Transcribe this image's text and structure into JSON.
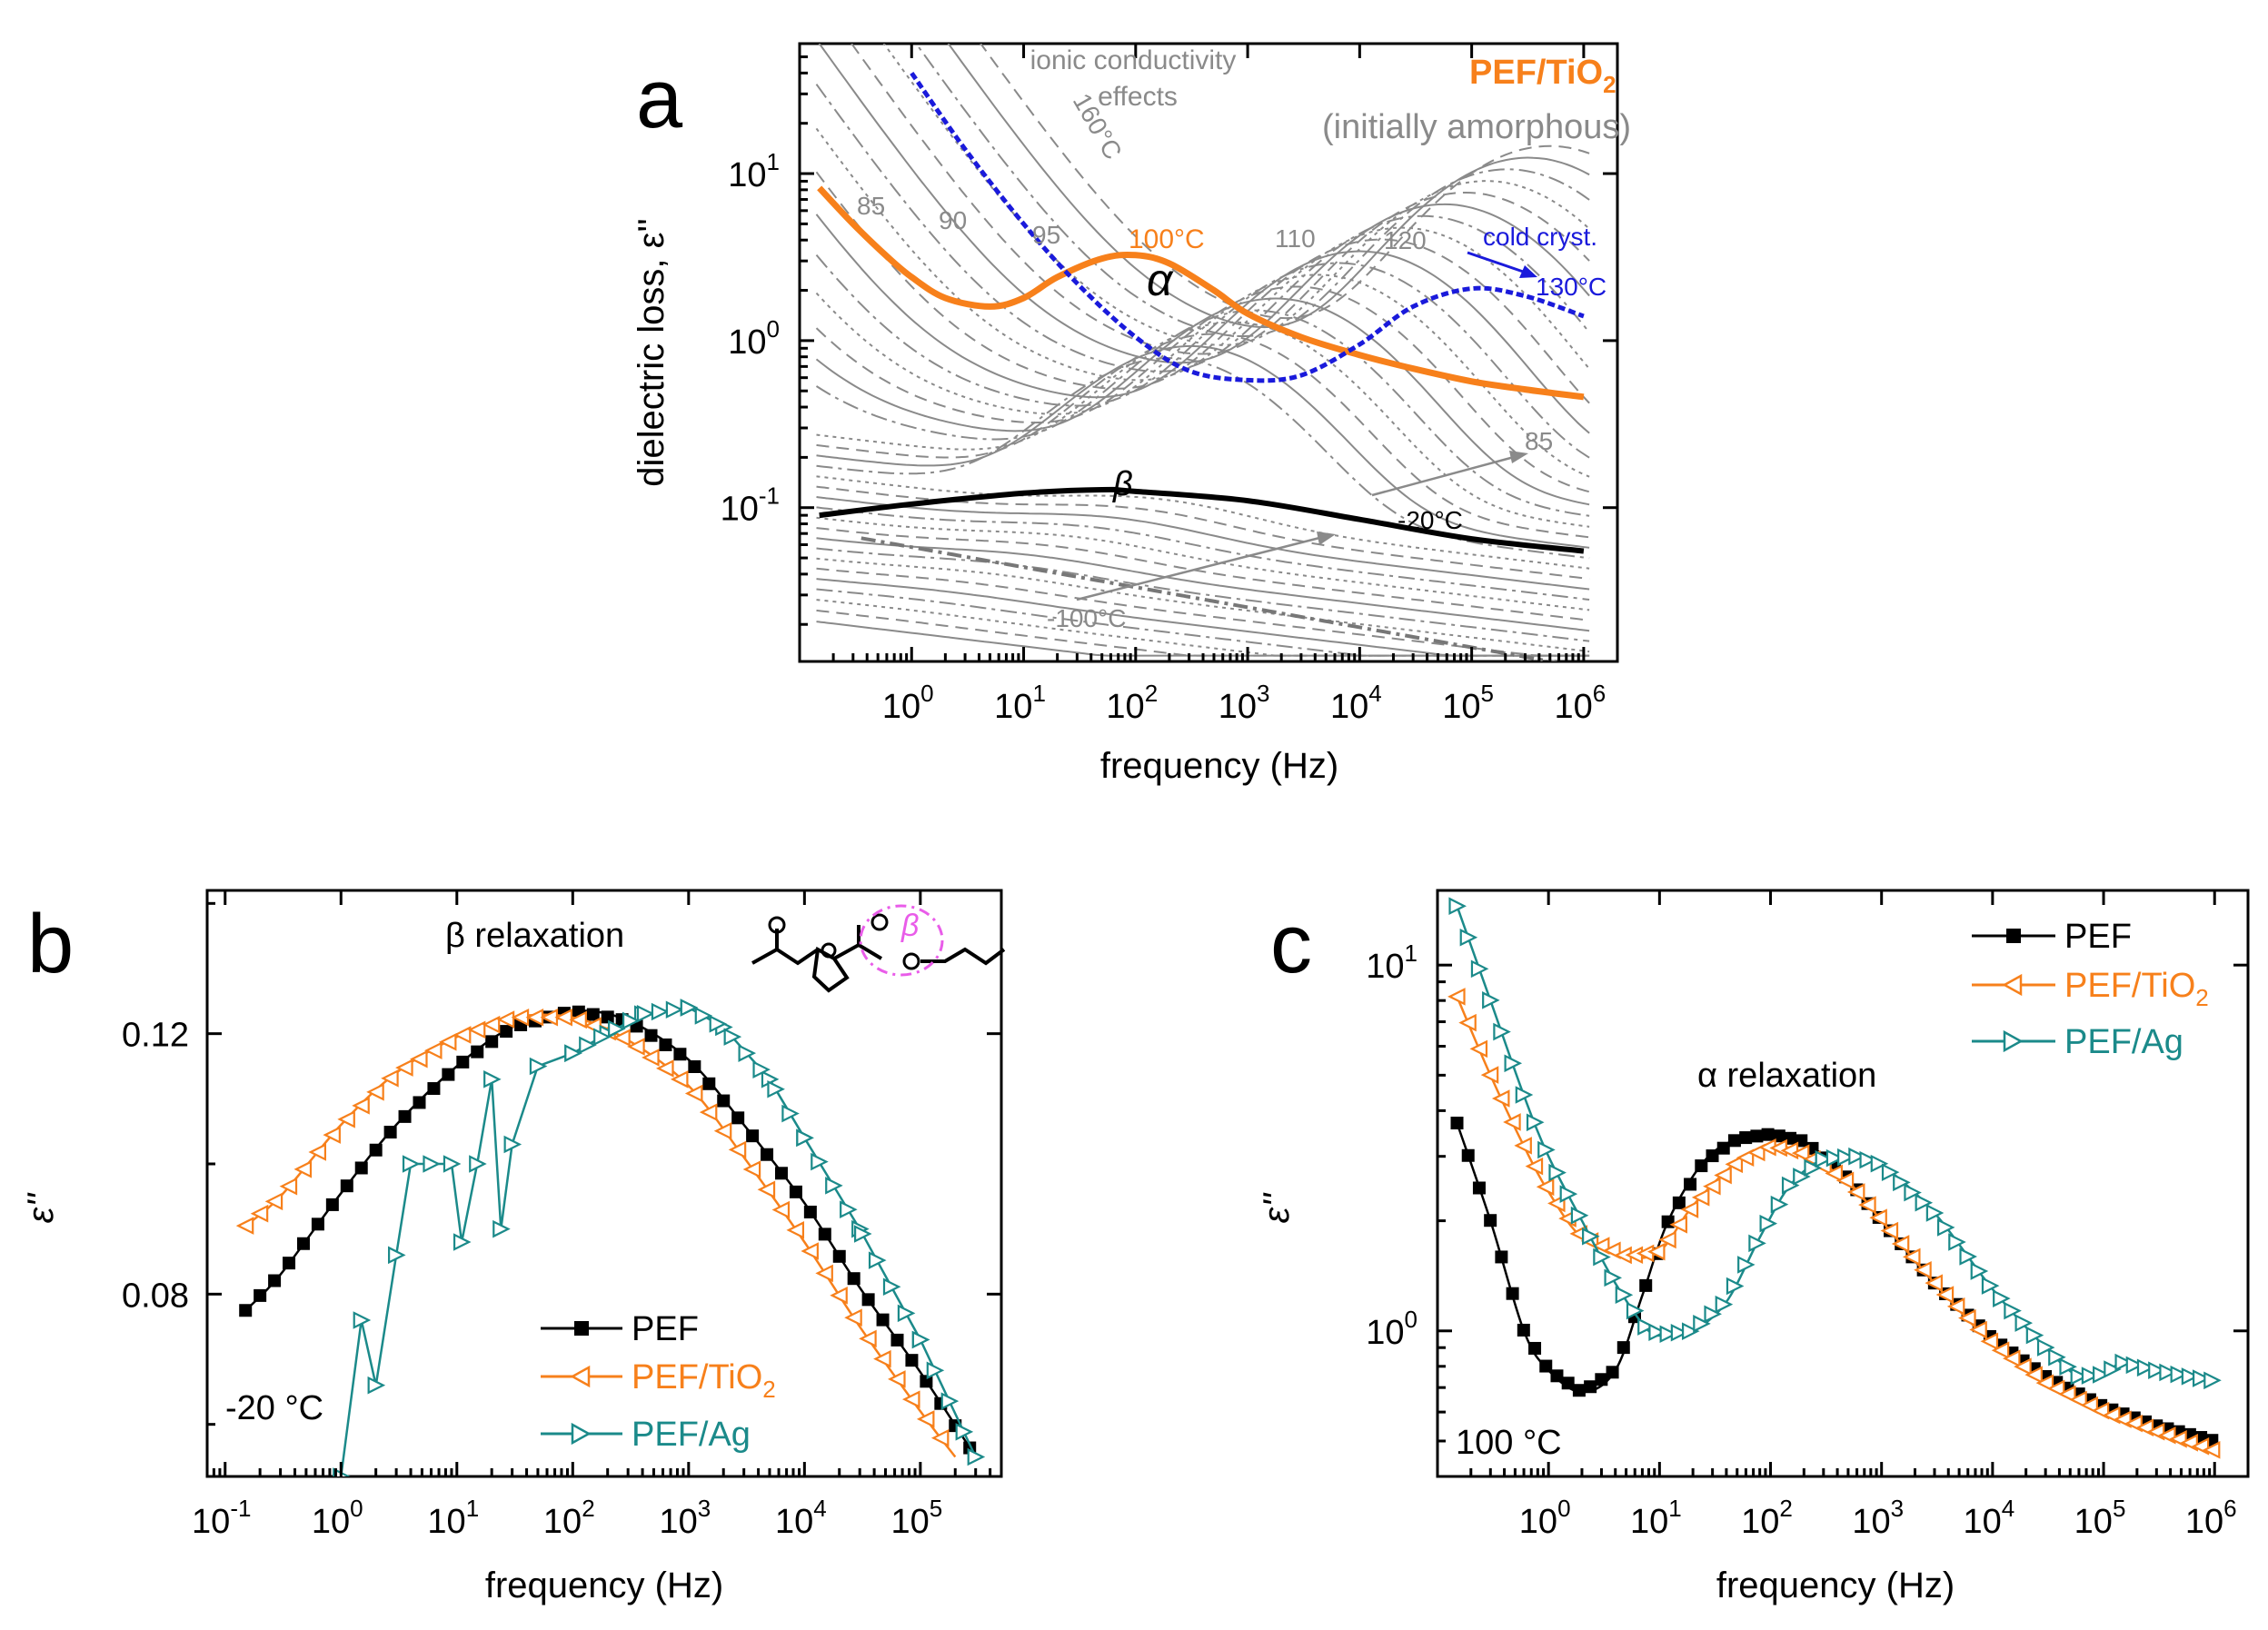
{
  "chart_data": [
    {
      "panel": "a",
      "type": "line",
      "title": "PEF/TiO2",
      "subtitle": "(initially amorphous)",
      "xlabel": "frequency (Hz)",
      "ylabel": "dielectric loss, ε''",
      "x_scale": "log",
      "y_scale": "log",
      "xlim": [
        0.1,
        2000000
      ],
      "ylim": [
        0.012,
        60
      ],
      "x_ticks": [
        "10^0",
        "10^1",
        "10^2",
        "10^3",
        "10^4",
        "10^5",
        "10^6"
      ],
      "y_ticks": [
        "10^-1",
        "10^0",
        "10^1"
      ],
      "annotations": {
        "ionic": [
          "ionic conductivity",
          "effects"
        ],
        "t160": "160°C",
        "t85": "85",
        "t90": "90",
        "t95": "95",
        "t100": "100°C",
        "t110": "110",
        "t120": "120",
        "cold": "cold cryst.",
        "t130": "130°C",
        "alpha": "α",
        "beta": "β",
        "tm20": "-20°C",
        "t85b": "85",
        "tm100": "-100°C"
      },
      "series": [
        {
          "name": "100°C",
          "color": "#f7801b",
          "x": [
            0.15,
            0.3,
            0.6,
            1,
            2,
            5,
            10,
            20,
            50,
            100,
            200,
            500,
            1000,
            3000,
            10000,
            30000,
            100000,
            300000,
            1000000
          ],
          "y": [
            8.2,
            5.0,
            3.2,
            2.4,
            1.8,
            1.6,
            1.8,
            2.4,
            3.1,
            3.25,
            2.9,
            2.0,
            1.45,
            1.05,
            0.82,
            0.68,
            0.57,
            0.51,
            0.46
          ]
        },
        {
          "name": "cold cryst. 130°C",
          "color": "#1a1adb",
          "x": [
            1,
            3,
            10,
            30,
            100,
            300,
            1000,
            3000,
            10000,
            30000,
            100000,
            300000,
            1000000
          ],
          "y": [
            40,
            14,
            5,
            2.2,
            1.05,
            0.66,
            0.58,
            0.62,
            0.95,
            1.6,
            2.05,
            1.85,
            1.4
          ]
        },
        {
          "name": "-20°C",
          "color": "#000000",
          "x": [
            0.15,
            1,
            10,
            50,
            100,
            1000,
            10000,
            100000,
            1000000
          ],
          "y": [
            0.09,
            0.105,
            0.122,
            0.128,
            0.125,
            0.11,
            0.085,
            0.065,
            0.055
          ]
        }
      ]
    },
    {
      "panel": "b",
      "type": "line",
      "title": "β relaxation",
      "xlabel": "frequency (Hz)",
      "ylabel": "ε''",
      "x_scale": "log",
      "y_scale": "linear",
      "xlim": [
        0.07,
        500000
      ],
      "ylim": [
        0.052,
        0.142
      ],
      "x_ticks": [
        "10^-1",
        "10^0",
        "10^1",
        "10^2",
        "10^3",
        "10^4",
        "10^5"
      ],
      "y_ticks": [
        "0.08",
        "0.12"
      ],
      "temperature": "-20 °C",
      "inset_label": "β",
      "series": [
        {
          "name": "PEF",
          "color": "#000000",
          "marker": "square",
          "x": [
            0.15,
            0.3,
            1,
            3,
            10,
            30,
            100,
            300,
            1000,
            3000,
            10000,
            30000,
            100000,
            300000
          ],
          "y": [
            0.0775,
            0.083,
            0.0955,
            0.106,
            0.115,
            0.121,
            0.1235,
            0.122,
            0.116,
            0.106,
            0.094,
            0.081,
            0.068,
            0.055
          ]
        },
        {
          "name": "PEF/TiO2",
          "color": "#f7801b",
          "marker": "left-triangle",
          "x": [
            0.15,
            0.3,
            1,
            3,
            10,
            30,
            100,
            300,
            1000,
            3000,
            10000,
            30000,
            100000,
            200000
          ],
          "y": [
            0.0905,
            0.095,
            0.106,
            0.114,
            0.1195,
            0.1225,
            0.1225,
            0.119,
            0.112,
            0.101,
            0.088,
            0.075,
            0.062,
            0.055
          ]
        },
        {
          "name": "PEF/Ag",
          "color": "#1b8a8a",
          "marker": "right-triangle",
          "x": [
            1,
            1.5,
            2,
            3,
            4,
            6,
            9,
            11,
            15,
            20,
            24,
            30,
            50,
            100,
            200,
            400,
            1000,
            2000,
            5000,
            10000,
            30000,
            100000,
            300000
          ],
          "y": [
            0.052,
            0.076,
            0.066,
            0.086,
            0.1,
            0.1,
            0.1,
            0.088,
            0.1,
            0.113,
            0.09,
            0.103,
            0.115,
            0.117,
            0.12,
            0.123,
            0.124,
            0.121,
            0.113,
            0.104,
            0.09,
            0.073,
            0.055
          ]
        }
      ]
    },
    {
      "panel": "c",
      "type": "line",
      "title": "α relaxation",
      "xlabel": "frequency (Hz)",
      "ylabel": "ε''",
      "x_scale": "log",
      "y_scale": "log",
      "xlim": [
        0.1,
        2000000
      ],
      "ylim": [
        0.4,
        16
      ],
      "x_ticks": [
        "10^0",
        "10^1",
        "10^2",
        "10^3",
        "10^4",
        "10^5",
        "10^6"
      ],
      "y_ticks": [
        "10^0",
        "10^1"
      ],
      "temperature": "100 °C",
      "series": [
        {
          "name": "PEF",
          "color": "#000000",
          "marker": "square",
          "x": [
            0.15,
            0.3,
            0.6,
            1,
            2,
            4,
            7,
            12,
            25,
            50,
            100,
            200,
            500,
            1000,
            3000,
            10000,
            30000,
            100000,
            300000,
            1000000
          ],
          "y": [
            3.7,
            2.0,
            1.0,
            0.78,
            0.68,
            0.78,
            1.25,
            2.0,
            2.9,
            3.35,
            3.45,
            3.3,
            2.6,
            2.0,
            1.35,
            0.95,
            0.75,
            0.62,
            0.55,
            0.5
          ]
        },
        {
          "name": "PEF/TiO2",
          "color": "#f7801b",
          "marker": "left-triangle",
          "x": [
            0.15,
            0.3,
            0.6,
            1,
            2,
            5,
            10,
            20,
            50,
            100,
            200,
            500,
            1000,
            3000,
            10000,
            30000,
            100000,
            300000,
            1000000
          ],
          "y": [
            8.2,
            5.0,
            3.2,
            2.4,
            1.8,
            1.6,
            1.65,
            2.2,
            2.9,
            3.2,
            3.05,
            2.55,
            2.0,
            1.35,
            0.92,
            0.72,
            0.6,
            0.53,
            0.47
          ]
        },
        {
          "name": "PEF/Ag",
          "color": "#1b8a8a",
          "marker": "right-triangle",
          "x": [
            0.15,
            0.3,
            0.6,
            1,
            2,
            4,
            8,
            12,
            20,
            40,
            80,
            150,
            300,
            600,
            1000,
            3000,
            10000,
            30000,
            60000,
            100000,
            150000,
            300000,
            1000000
          ],
          "y": [
            14.5,
            8.0,
            4.4,
            3.0,
            2.0,
            1.35,
            1.0,
            0.98,
            1.0,
            1.2,
            1.8,
            2.5,
            2.95,
            3.0,
            2.85,
            2.1,
            1.3,
            0.9,
            0.75,
            0.76,
            0.82,
            0.78,
            0.73
          ]
        }
      ]
    }
  ],
  "labels": {
    "panel_a": "a",
    "panel_b": "b",
    "panel_c": "c",
    "title_a_main": "PEF/TiO",
    "title_a_sub": "2",
    "legend_b": [
      "PEF",
      "PEF/TiO",
      "PEF/Ag"
    ],
    "legend_c": [
      "PEF",
      "PEF/TiO",
      "PEF/Ag"
    ],
    "legend_sub": "2"
  }
}
